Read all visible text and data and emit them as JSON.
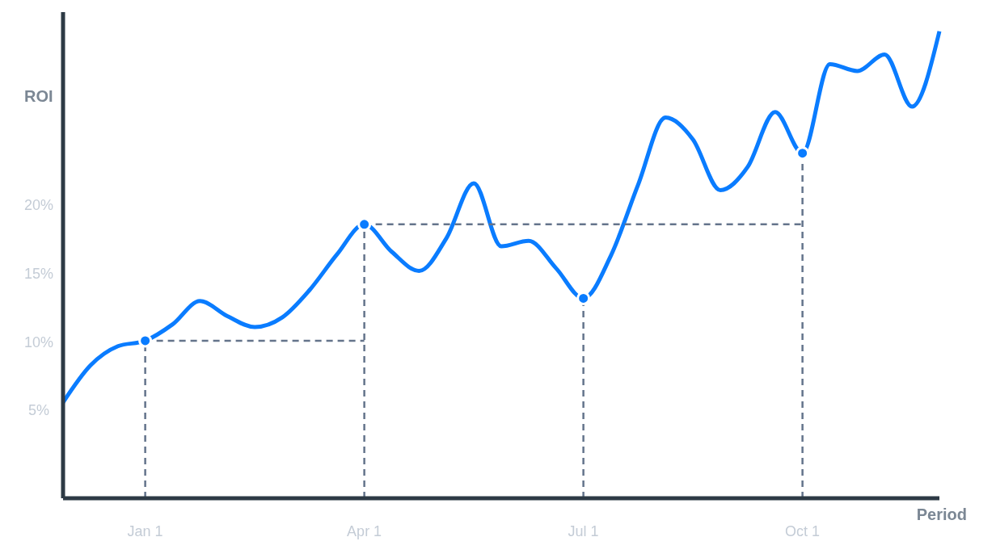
{
  "chart_data": {
    "type": "line",
    "xlabel": "Period",
    "ylabel": "ROI",
    "categories": [
      null,
      null,
      null,
      "Jan 1",
      null,
      null,
      null,
      null,
      null,
      null,
      null,
      "Apr 1",
      null,
      null,
      null,
      null,
      null,
      null,
      null,
      "Jul 1",
      null,
      null,
      null,
      null,
      null,
      null,
      null,
      "Oct 1",
      null,
      null,
      null,
      null,
      null
    ],
    "ylim": [
      -1.4,
      34.1
    ],
    "yticks": [
      {
        "value": 5,
        "label": "5%"
      },
      {
        "value": 10,
        "label": "10%"
      },
      {
        "value": 15,
        "label": "15%"
      },
      {
        "value": 20,
        "label": "20%"
      }
    ],
    "grid": false,
    "ref_lines": [
      {
        "axis": "x",
        "value": "Jan 1",
        "color": "#64748b",
        "line_style": "dashed"
      },
      {
        "axis": "x",
        "value": "Apr 1",
        "color": "#64748b",
        "line_style": "dashed"
      },
      {
        "axis": "x",
        "value": "Jul 1",
        "color": "#64748b",
        "line_style": "dashed"
      },
      {
        "axis": "x",
        "value": "Oct 1",
        "color": "#64748b",
        "line_style": "dashed"
      }
    ],
    "series": [
      {
        "color": "#0a7cff",
        "line_style": "solid",
        "marker": "none",
        "values": [
          5.6,
          8.3,
          9.7,
          10.1,
          11.3,
          13.0,
          11.9,
          11.1,
          11.8,
          13.8,
          16.4,
          18.6,
          16.6,
          15.2,
          17.6,
          21.6,
          17.0,
          17.4,
          15.4,
          13.2,
          16.3,
          21.5,
          26.4,
          24.8,
          21.1,
          22.8,
          26.8,
          23.8,
          30.3,
          29.8,
          31.0,
          27.2,
          32.7
        ]
      },
      {
        "type": "line",
        "color": "#64748b",
        "line_style": "dashed",
        "marker": "none",
        "values": [
          null,
          null,
          null,
          10.1,
          10.1,
          10.1,
          10.1,
          10.1,
          10.1,
          10.1,
          10.1,
          10.1,
          null,
          null,
          null,
          null,
          null,
          null,
          null,
          null,
          null,
          null,
          null,
          null,
          null,
          null,
          null,
          null,
          null,
          null,
          null,
          null,
          null
        ]
      },
      {
        "type": "line",
        "color": "#64748b",
        "line_style": "dashed",
        "marker": "none",
        "values": [
          null,
          null,
          null,
          null,
          null,
          null,
          null,
          null,
          null,
          null,
          null,
          18.6,
          18.6,
          18.6,
          18.6,
          18.6,
          18.6,
          18.6,
          18.6,
          18.6,
          18.6,
          18.6,
          18.6,
          18.6,
          18.6,
          18.6,
          18.6,
          18.6,
          null,
          null,
          null,
          null,
          null
        ]
      },
      {
        "type": "scatter",
        "color": "#0a7cff",
        "marker": "circle",
        "x": [
          "Jan 1",
          "Apr 1",
          "Jul 1",
          "Oct 1"
        ],
        "values": [
          10.1,
          18.6,
          13.2,
          23.8
        ]
      }
    ]
  }
}
